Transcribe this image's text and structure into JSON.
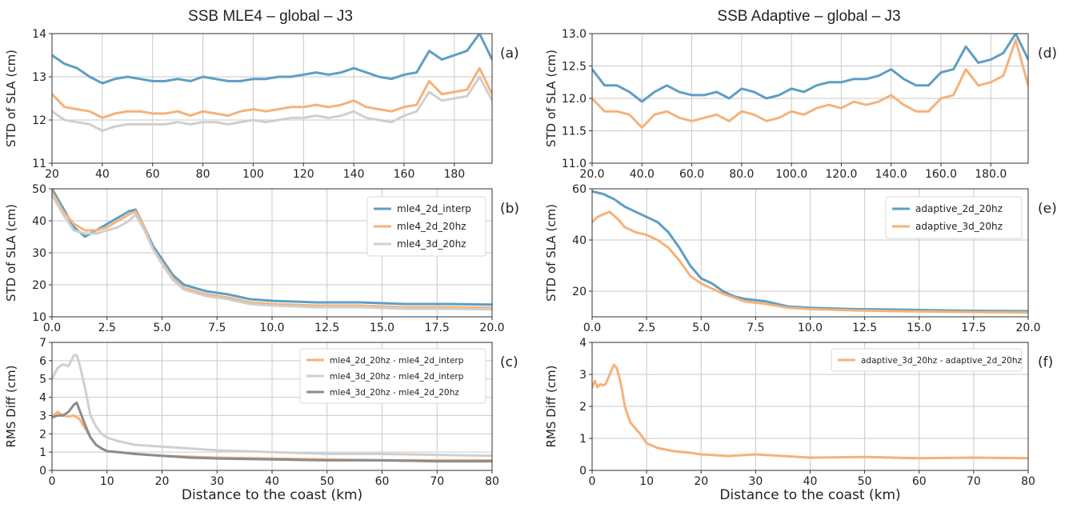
{
  "figure": {
    "left_title": "SSB MLE4 – global – J3",
    "right_title": "SSB Adaptive – global – J3"
  },
  "colors": {
    "blue": "#5e9ec4",
    "orange": "#f5b27a",
    "lightgray": "#cfcfcf",
    "darkgray": "#8c8c8c"
  },
  "chart_data": [
    {
      "id": "a",
      "panel_label": "(a)",
      "type": "line",
      "title": "",
      "xlabel": "",
      "ylabel": "STD of SLA (cm)",
      "xlim": [
        20,
        195
      ],
      "ylim": [
        11,
        14
      ],
      "xticks": [
        20,
        40,
        60,
        80,
        100,
        120,
        140,
        160,
        180
      ],
      "yticks": [
        11,
        12,
        13,
        14
      ],
      "tick_decimals": 0,
      "grid": true,
      "legend": null,
      "series": [
        {
          "color": "blue",
          "x": [
            20,
            25,
            30,
            35,
            40,
            45,
            50,
            55,
            60,
            65,
            70,
            75,
            80,
            85,
            90,
            95,
            100,
            105,
            110,
            115,
            120,
            125,
            130,
            135,
            140,
            145,
            150,
            155,
            160,
            165,
            170,
            175,
            180,
            185,
            190,
            195
          ],
          "y": [
            13.5,
            13.3,
            13.2,
            13.0,
            12.85,
            12.95,
            13.0,
            12.95,
            12.9,
            12.9,
            12.95,
            12.9,
            13.0,
            12.95,
            12.9,
            12.9,
            12.95,
            12.95,
            13.0,
            13.0,
            13.05,
            13.1,
            13.05,
            13.1,
            13.2,
            13.1,
            13.0,
            12.95,
            13.05,
            13.1,
            13.6,
            13.4,
            13.5,
            13.6,
            14.0,
            13.4
          ]
        },
        {
          "color": "orange",
          "x": [
            20,
            25,
            30,
            35,
            40,
            45,
            50,
            55,
            60,
            65,
            70,
            75,
            80,
            85,
            90,
            95,
            100,
            105,
            110,
            115,
            120,
            125,
            130,
            135,
            140,
            145,
            150,
            155,
            160,
            165,
            170,
            175,
            180,
            185,
            190,
            195
          ],
          "y": [
            12.6,
            12.3,
            12.25,
            12.2,
            12.05,
            12.15,
            12.2,
            12.2,
            12.15,
            12.15,
            12.2,
            12.1,
            12.2,
            12.15,
            12.1,
            12.2,
            12.25,
            12.2,
            12.25,
            12.3,
            12.3,
            12.35,
            12.3,
            12.35,
            12.45,
            12.3,
            12.25,
            12.2,
            12.3,
            12.35,
            12.9,
            12.6,
            12.65,
            12.7,
            13.2,
            12.6
          ]
        },
        {
          "color": "lightgray",
          "x": [
            20,
            25,
            30,
            35,
            40,
            45,
            50,
            55,
            60,
            65,
            70,
            75,
            80,
            85,
            90,
            95,
            100,
            105,
            110,
            115,
            120,
            125,
            130,
            135,
            140,
            145,
            150,
            155,
            160,
            165,
            170,
            175,
            180,
            185,
            190,
            195
          ],
          "y": [
            12.2,
            12.0,
            11.95,
            11.9,
            11.75,
            11.85,
            11.9,
            11.9,
            11.9,
            11.9,
            11.95,
            11.9,
            11.95,
            11.95,
            11.9,
            11.95,
            12.0,
            11.95,
            12.0,
            12.05,
            12.05,
            12.1,
            12.05,
            12.1,
            12.2,
            12.05,
            12.0,
            11.95,
            12.1,
            12.2,
            12.65,
            12.45,
            12.5,
            12.55,
            13.0,
            12.45
          ]
        }
      ]
    },
    {
      "id": "d",
      "panel_label": "(d)",
      "type": "line",
      "title": "",
      "xlabel": "",
      "ylabel": "STD of SLA (cm)",
      "xlim": [
        20,
        195
      ],
      "ylim": [
        11,
        13
      ],
      "xticks": [
        20,
        40,
        60,
        80,
        100,
        120,
        140,
        160,
        180
      ],
      "yticks": [
        11.0,
        11.5,
        12.0,
        12.5,
        13.0
      ],
      "tick_decimals": 1,
      "grid": true,
      "legend": null,
      "series": [
        {
          "color": "blue",
          "x": [
            20,
            25,
            30,
            35,
            40,
            45,
            50,
            55,
            60,
            65,
            70,
            75,
            80,
            85,
            90,
            95,
            100,
            105,
            110,
            115,
            120,
            125,
            130,
            135,
            140,
            145,
            150,
            155,
            160,
            165,
            170,
            175,
            180,
            185,
            190,
            195
          ],
          "y": [
            12.45,
            12.2,
            12.2,
            12.1,
            11.95,
            12.1,
            12.2,
            12.1,
            12.05,
            12.05,
            12.1,
            12.0,
            12.15,
            12.1,
            12.0,
            12.05,
            12.15,
            12.1,
            12.2,
            12.25,
            12.25,
            12.3,
            12.3,
            12.35,
            12.45,
            12.3,
            12.2,
            12.2,
            12.4,
            12.45,
            12.8,
            12.55,
            12.6,
            12.7,
            13.0,
            12.6
          ]
        },
        {
          "color": "orange",
          "x": [
            20,
            25,
            30,
            35,
            40,
            45,
            50,
            55,
            60,
            65,
            70,
            75,
            80,
            85,
            90,
            95,
            100,
            105,
            110,
            115,
            120,
            125,
            130,
            135,
            140,
            145,
            150,
            155,
            160,
            165,
            170,
            175,
            180,
            185,
            190,
            195
          ],
          "y": [
            12.0,
            11.8,
            11.8,
            11.75,
            11.55,
            11.75,
            11.8,
            11.7,
            11.65,
            11.7,
            11.75,
            11.65,
            11.8,
            11.75,
            11.65,
            11.7,
            11.8,
            11.75,
            11.85,
            11.9,
            11.85,
            11.95,
            11.9,
            11.95,
            12.05,
            11.9,
            11.8,
            11.8,
            12.0,
            12.05,
            12.45,
            12.2,
            12.25,
            12.35,
            12.9,
            12.2
          ]
        }
      ]
    },
    {
      "id": "b",
      "panel_label": "(b)",
      "type": "line",
      "title": "",
      "xlabel": "",
      "ylabel": "STD of SLA (cm)",
      "xlim": [
        0,
        20
      ],
      "ylim": [
        10,
        50
      ],
      "xticks": [
        0,
        2.5,
        5,
        7.5,
        10,
        12.5,
        15,
        17.5,
        20
      ],
      "yticks": [
        10,
        20,
        30,
        40,
        50
      ],
      "tick_decimals": 1,
      "ytick_decimals": 0,
      "grid": true,
      "legend": "top-right",
      "series": [
        {
          "name": "mle4_2d_interp",
          "color": "blue",
          "x": [
            0,
            0.5,
            1,
            1.5,
            2,
            2.5,
            3,
            3.5,
            3.8,
            4.2,
            4.6,
            5,
            5.5,
            6,
            7,
            8,
            9,
            10,
            12,
            14,
            16,
            18,
            20
          ],
          "y": [
            50,
            44,
            38,
            35,
            37,
            39,
            41,
            43,
            43.5,
            38,
            32,
            28,
            23,
            20,
            18,
            17,
            15.5,
            15,
            14.5,
            14.5,
            14,
            14,
            13.8
          ]
        },
        {
          "name": "mle4_2d_20hz",
          "color": "orange",
          "x": [
            0,
            0.5,
            1,
            1.5,
            2,
            2.5,
            3,
            3.5,
            3.8,
            4.2,
            4.6,
            5,
            5.5,
            6,
            7,
            8,
            9,
            10,
            12,
            14,
            16,
            18,
            20
          ],
          "y": [
            49,
            43,
            39,
            37,
            37,
            38,
            40,
            42,
            43,
            38,
            31,
            27,
            22,
            19,
            17,
            16,
            14.5,
            14,
            13.5,
            13.5,
            13,
            13,
            12.8
          ]
        },
        {
          "name": "mle4_3d_20hz",
          "color": "lightgray",
          "x": [
            0,
            0.5,
            1,
            1.5,
            2,
            2.5,
            3,
            3.5,
            3.8,
            4.2,
            4.6,
            5,
            5.5,
            6,
            7,
            8,
            9,
            10,
            12,
            14,
            16,
            18,
            20
          ],
          "y": [
            48,
            42,
            37,
            36,
            36,
            37,
            38,
            40,
            42,
            37,
            31,
            26.5,
            21.5,
            18.5,
            16.5,
            15.5,
            14,
            13.5,
            13,
            13,
            12.5,
            12.5,
            12.3
          ]
        }
      ]
    },
    {
      "id": "e",
      "panel_label": "(e)",
      "type": "line",
      "title": "",
      "xlabel": "",
      "ylabel": "STD of SLA (cm)",
      "xlim": [
        0,
        20
      ],
      "ylim": [
        10,
        60
      ],
      "xticks": [
        0,
        2.5,
        5,
        7.5,
        10,
        12.5,
        15,
        17.5,
        20
      ],
      "yticks": [
        20,
        40,
        60
      ],
      "tick_decimals": 1,
      "ytick_decimals": 0,
      "grid": true,
      "legend": "top-right",
      "series": [
        {
          "name": "adaptive_2d_20hz",
          "color": "blue",
          "x": [
            0,
            0.5,
            1,
            1.5,
            2,
            2.5,
            3,
            3.5,
            4,
            4.5,
            5,
            5.5,
            6,
            6.5,
            7,
            8,
            9,
            10,
            12,
            14,
            16,
            18,
            20
          ],
          "y": [
            59,
            58,
            56,
            53,
            51,
            49,
            47,
            43,
            37,
            30,
            25,
            23,
            20,
            18,
            17,
            16,
            14,
            13.5,
            13,
            12.8,
            12.5,
            12.3,
            12.2
          ]
        },
        {
          "name": "adaptive_3d_20hz",
          "color": "orange",
          "x": [
            0,
            0.25,
            0.5,
            0.8,
            1.2,
            1.5,
            2,
            2.5,
            3,
            3.5,
            4,
            4.5,
            5,
            5.5,
            6,
            6.5,
            7,
            8,
            9,
            10,
            12,
            14,
            16,
            18,
            20
          ],
          "y": [
            47,
            49,
            50,
            51,
            48,
            45,
            43,
            42,
            40,
            37,
            32,
            26,
            23,
            21,
            19,
            17.5,
            16,
            15,
            13.5,
            13,
            12.5,
            12.2,
            12,
            11.8,
            11.7
          ]
        }
      ]
    },
    {
      "id": "c",
      "panel_label": "(c)",
      "type": "line",
      "title": "",
      "xlabel": "Distance to the coast (km)",
      "ylabel": "RMS Diff (cm)",
      "xlim": [
        0,
        80
      ],
      "ylim": [
        0,
        7
      ],
      "xticks": [
        0,
        10,
        20,
        30,
        40,
        50,
        60,
        70,
        80
      ],
      "yticks": [
        0,
        1,
        2,
        3,
        4,
        5,
        6,
        7
      ],
      "tick_decimals": 0,
      "grid": true,
      "legend": "top-right",
      "series": [
        {
          "name": "mle4_2d_20hz - mle4_2d_interp",
          "color": "orange",
          "x": [
            0,
            1,
            2,
            3,
            4,
            5,
            6,
            7,
            8,
            9,
            10,
            12,
            15,
            20,
            25,
            30,
            40,
            50,
            60,
            70,
            80
          ],
          "y": [
            2.9,
            3.2,
            3.0,
            2.95,
            3.0,
            2.8,
            2.3,
            1.8,
            1.4,
            1.2,
            1.05,
            1.0,
            0.9,
            0.8,
            0.75,
            0.7,
            0.65,
            0.6,
            0.55,
            0.55,
            0.55
          ]
        },
        {
          "name": "mle4_3d_20hz - mle4_2d_interp",
          "color": "lightgray",
          "x": [
            0,
            1,
            2,
            3,
            4,
            4.5,
            5,
            6,
            7,
            8,
            9,
            10,
            12,
            15,
            20,
            25,
            30,
            40,
            50,
            60,
            70,
            80
          ],
          "y": [
            5.0,
            5.6,
            5.8,
            5.7,
            6.3,
            6.3,
            5.8,
            4.5,
            3.0,
            2.4,
            2.0,
            1.8,
            1.6,
            1.4,
            1.3,
            1.2,
            1.1,
            1.0,
            0.9,
            0.9,
            0.85,
            0.8
          ]
        },
        {
          "name": "mle4_3d_20hz - mle4_2d_20hz",
          "color": "darkgray",
          "x": [
            0,
            1,
            2,
            3,
            4,
            4.5,
            5,
            6,
            7,
            8,
            9,
            10,
            12,
            15,
            20,
            25,
            30,
            40,
            50,
            60,
            70,
            80
          ],
          "y": [
            2.9,
            3.0,
            3.0,
            3.2,
            3.6,
            3.7,
            3.3,
            2.5,
            1.8,
            1.4,
            1.2,
            1.05,
            1.0,
            0.9,
            0.8,
            0.7,
            0.65,
            0.6,
            0.55,
            0.55,
            0.5,
            0.5
          ]
        }
      ]
    },
    {
      "id": "f",
      "panel_label": "(f)",
      "type": "line",
      "title": "",
      "xlabel": "Distance to the coast (km)",
      "ylabel": "RMS Diff (cm)",
      "xlim": [
        0,
        80
      ],
      "ylim": [
        0,
        4
      ],
      "xticks": [
        0,
        10,
        20,
        30,
        40,
        50,
        60,
        70,
        80
      ],
      "yticks": [
        0,
        1,
        2,
        3,
        4
      ],
      "tick_decimals": 0,
      "grid": true,
      "legend": "top-right",
      "series": [
        {
          "name": "adaptive_3d_20hz - adaptive_2d_20hz",
          "color": "orange",
          "x": [
            0,
            0.5,
            1,
            1.5,
            2,
            2.5,
            3,
            3.5,
            4,
            4.5,
            5,
            5.5,
            6,
            7,
            8,
            9,
            10,
            12,
            15,
            18,
            20,
            25,
            30,
            40,
            50,
            60,
            70,
            80
          ],
          "y": [
            2.6,
            2.8,
            2.6,
            2.7,
            2.65,
            2.7,
            2.9,
            3.1,
            3.3,
            3.2,
            2.9,
            2.5,
            2.0,
            1.5,
            1.3,
            1.1,
            0.85,
            0.7,
            0.6,
            0.55,
            0.5,
            0.45,
            0.5,
            0.4,
            0.42,
            0.38,
            0.4,
            0.38
          ]
        }
      ]
    }
  ]
}
